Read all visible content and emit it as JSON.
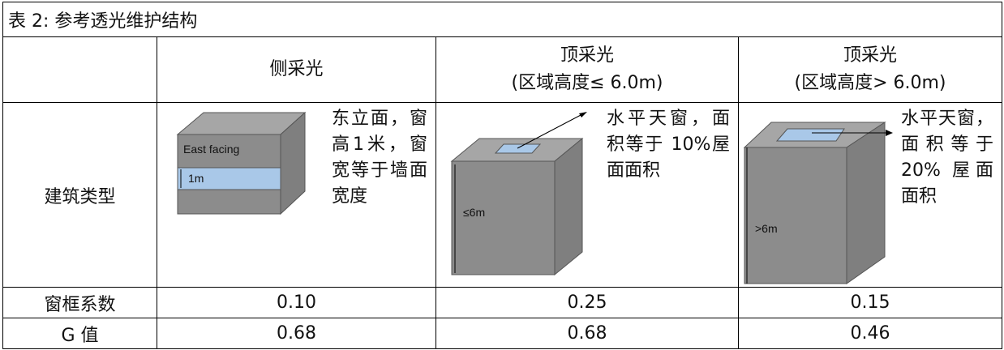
{
  "title": "表 2: 参考透光维护结构",
  "columns": [
    {
      "lines": [
        "侧采光"
      ]
    },
    {
      "lines": [
        "顶采光",
        "(区域高度≤ 6.0m)"
      ]
    },
    {
      "lines": [
        "顶采光",
        "(区域高度> 6.0m)"
      ]
    }
  ],
  "type_row": {
    "label": "建筑类型",
    "cells": [
      {
        "image_labels": [
          "East facing",
          "1m"
        ],
        "description": "东立面，窗高1米，窗宽等于墙面宽度"
      },
      {
        "image_labels": [
          "≤6m"
        ],
        "description": "水平天窗，面积等于 10%屋面面积"
      },
      {
        "image_labels": [
          ">6m"
        ],
        "description": "水平天窗，面积等于 20% 屋面面积"
      }
    ]
  },
  "rows": [
    [
      "窗框系数",
      "0.10",
      "0.25",
      "0.15"
    ],
    [
      "G 值",
      "0.68",
      "0.68",
      "0.46"
    ]
  ]
}
